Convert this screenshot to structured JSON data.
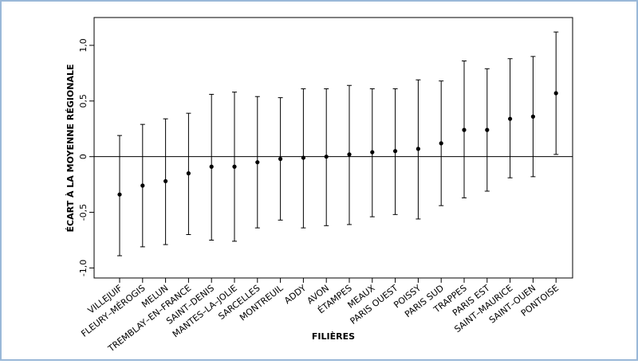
{
  "chart_data": {
    "type": "errorbar",
    "xlabel": "FILIÈRES",
    "ylabel": "ÉCART À LA MOYENNE RÉGIONALE",
    "categories": [
      "VILLEJUIF",
      "FLEURY–MÉROGIS",
      "MELUN",
      "TREMBLAY–EN–FRANCE",
      "SAINT–DENIS",
      "MANTES–LA–JOLIE",
      "SARCELLES",
      "MONTREUIL",
      "ADDY",
      "AVON",
      "ÉTAMPES",
      "MEAUX",
      "PARIS OUEST",
      "POISSY",
      "PARIS SUD",
      "TRAPPES",
      "PARIS EST",
      "SAINT–MAURICE",
      "SAINT–OUEN",
      "PONTOISE"
    ],
    "values": [
      -0.34,
      -0.26,
      -0.22,
      -0.15,
      -0.09,
      -0.09,
      -0.05,
      -0.02,
      -0.01,
      0.0,
      0.02,
      0.04,
      0.05,
      0.07,
      0.12,
      0.24,
      0.24,
      0.34,
      0.36,
      0.57
    ],
    "lower": [
      -0.89,
      -0.81,
      -0.79,
      -0.7,
      -0.75,
      -0.76,
      -0.64,
      -0.57,
      -0.64,
      -0.62,
      -0.61,
      -0.54,
      -0.52,
      -0.56,
      -0.44,
      -0.37,
      -0.31,
      -0.19,
      -0.18,
      0.02
    ],
    "upper": [
      0.19,
      0.29,
      0.34,
      0.39,
      0.56,
      0.58,
      0.54,
      0.53,
      0.61,
      0.61,
      0.64,
      0.61,
      0.61,
      0.69,
      0.68,
      0.86,
      0.79,
      0.88,
      0.9,
      1.12
    ],
    "color": "#000000",
    "reference_line": 0,
    "ylim": [
      -1.09,
      1.25
    ],
    "yticks": [
      {
        "value": -1,
        "label": "-1,0"
      },
      {
        "value": -0.5,
        "label": "-0,5"
      },
      0,
      {
        "value": 0.5,
        "label": "0,5"
      },
      {
        "value": 1,
        "label": "1,0"
      }
    ]
  }
}
